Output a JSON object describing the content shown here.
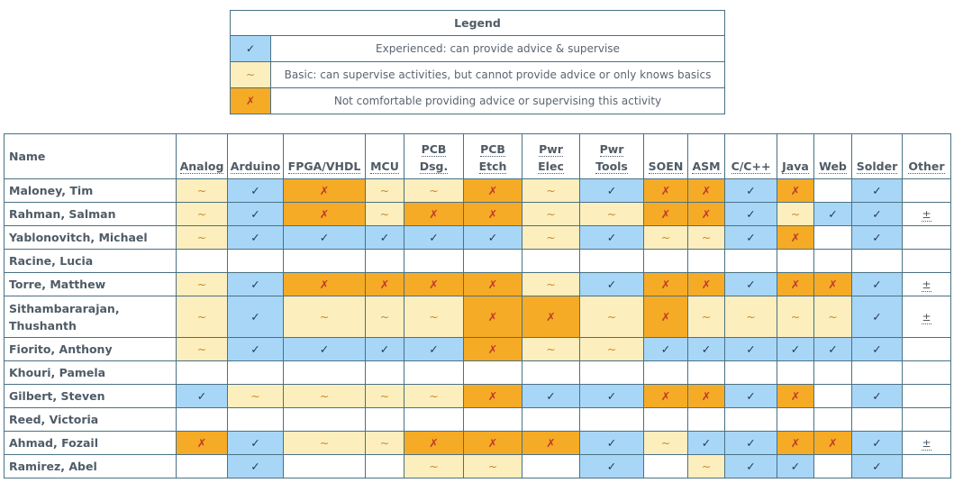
{
  "legend": {
    "title": "Legend",
    "entries": [
      {
        "symbol": "✓",
        "level": "exp",
        "text": "Experienced: can provide advice & supervise"
      },
      {
        "symbol": "~",
        "level": "basic",
        "text": "Basic: can supervise activities, but cannot provide advice or only knows basics"
      },
      {
        "symbol": "✗",
        "level": "none",
        "text": "Not comfortable providing advice or supervising this activity"
      }
    ]
  },
  "symbols": {
    "exp": "✓",
    "basic": "~",
    "none": "✗",
    "empty": "",
    "plus": "±"
  },
  "colors": {
    "exp": "#a8d6f7",
    "basic": "#fdeebd",
    "none": "#f5ab25",
    "border": "#4a7184",
    "header_text": "#4f5b66"
  },
  "table": {
    "name_header": "Name",
    "columns": [
      {
        "key": "analog",
        "label": [
          "Analog"
        ]
      },
      {
        "key": "arduino",
        "label": [
          "Arduino"
        ]
      },
      {
        "key": "fpga",
        "label": [
          "FPGA/VHDL"
        ]
      },
      {
        "key": "mcu",
        "label": [
          "MCU"
        ]
      },
      {
        "key": "pcbdsg",
        "label": [
          "PCB",
          "Dsg."
        ]
      },
      {
        "key": "pcbetch",
        "label": [
          "PCB",
          "Etch"
        ]
      },
      {
        "key": "pwrelec",
        "label": [
          "Pwr",
          "Elec"
        ]
      },
      {
        "key": "pwrtools",
        "label": [
          "Pwr",
          "Tools"
        ]
      },
      {
        "key": "soen",
        "label": [
          "SOEN"
        ]
      },
      {
        "key": "asm",
        "label": [
          "ASM"
        ]
      },
      {
        "key": "ccpp",
        "label": [
          "C/C++"
        ]
      },
      {
        "key": "java",
        "label": [
          "Java"
        ]
      },
      {
        "key": "web",
        "label": [
          "Web"
        ]
      },
      {
        "key": "solder",
        "label": [
          "Solder"
        ]
      },
      {
        "key": "other",
        "label": [
          "Other"
        ]
      }
    ],
    "rows": [
      {
        "name": [
          "Maloney, Tim"
        ],
        "cells": [
          "basic",
          "exp",
          "none",
          "basic",
          "basic",
          "none",
          "basic",
          "exp",
          "none",
          "none",
          "exp",
          "none",
          "empty",
          "exp",
          "empty"
        ]
      },
      {
        "name": [
          "Rahman, Salman"
        ],
        "cells": [
          "basic",
          "exp",
          "none",
          "basic",
          "none",
          "none",
          "basic",
          "basic",
          "none",
          "none",
          "exp",
          "basic",
          "exp",
          "exp",
          "plus"
        ]
      },
      {
        "name": [
          "Yablonovitch, Michael"
        ],
        "cells": [
          "basic",
          "exp",
          "exp",
          "exp",
          "exp",
          "exp",
          "basic",
          "exp",
          "basic",
          "basic",
          "exp",
          "none",
          "empty",
          "exp",
          "empty"
        ]
      },
      {
        "name": [
          "Racine, Lucia"
        ],
        "cells": [
          "empty",
          "empty",
          "empty",
          "empty",
          "empty",
          "empty",
          "empty",
          "empty",
          "empty",
          "empty",
          "empty",
          "empty",
          "empty",
          "empty",
          "empty"
        ]
      },
      {
        "name": [
          "Torre, Matthew"
        ],
        "cells": [
          "basic",
          "exp",
          "none",
          "none",
          "none",
          "none",
          "basic",
          "exp",
          "none",
          "none",
          "exp",
          "none",
          "none",
          "exp",
          "plus"
        ]
      },
      {
        "name": [
          "Sithambararajan,",
          "Thushanth"
        ],
        "cells": [
          "basic",
          "exp",
          "basic",
          "basic",
          "basic",
          "none",
          "none",
          "basic",
          "none",
          "basic",
          "basic",
          "basic",
          "basic",
          "exp",
          "plus"
        ]
      },
      {
        "name": [
          "Fiorito, Anthony"
        ],
        "cells": [
          "basic",
          "exp",
          "exp",
          "exp",
          "exp",
          "none",
          "basic",
          "basic",
          "exp",
          "exp",
          "exp",
          "exp",
          "exp",
          "exp",
          "empty"
        ]
      },
      {
        "name": [
          "Khouri, Pamela"
        ],
        "cells": [
          "empty",
          "empty",
          "empty",
          "empty",
          "empty",
          "empty",
          "empty",
          "empty",
          "empty",
          "empty",
          "empty",
          "empty",
          "empty",
          "empty",
          "empty"
        ]
      },
      {
        "name": [
          "Gilbert, Steven"
        ],
        "cells": [
          "exp",
          "basic",
          "basic",
          "basic",
          "basic",
          "none",
          "exp",
          "exp",
          "none",
          "none",
          "exp",
          "none",
          "empty",
          "exp",
          "empty"
        ]
      },
      {
        "name": [
          "Reed, Victoria"
        ],
        "cells": [
          "empty",
          "empty",
          "empty",
          "empty",
          "empty",
          "empty",
          "empty",
          "empty",
          "empty",
          "empty",
          "empty",
          "empty",
          "empty",
          "empty",
          "empty"
        ]
      },
      {
        "name": [
          "Ahmad, Fozail"
        ],
        "cells": [
          "none",
          "exp",
          "basic",
          "basic",
          "none",
          "none",
          "none",
          "exp",
          "basic",
          "exp",
          "exp",
          "none",
          "none",
          "exp",
          "plus"
        ]
      },
      {
        "name": [
          "Ramirez, Abel"
        ],
        "cells": [
          "empty",
          "exp",
          "empty",
          "empty",
          "basic",
          "basic",
          "empty",
          "exp",
          "empty",
          "basic",
          "exp",
          "exp",
          "empty",
          "exp",
          "empty"
        ]
      }
    ]
  }
}
